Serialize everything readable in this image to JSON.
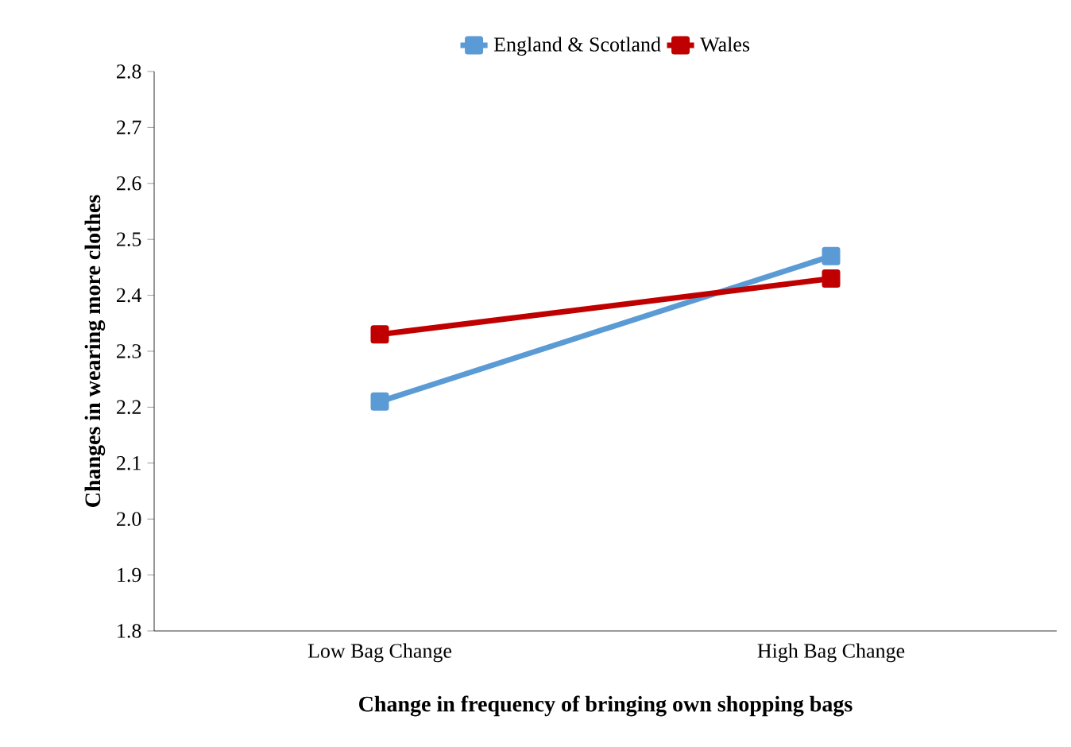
{
  "chart_data": {
    "type": "line",
    "xlabel": "Change in frequency of bringing own shopping bags",
    "ylabel": "Changes in wearing more clothes",
    "categories": [
      "Low Bag Change",
      "High Bag Change"
    ],
    "series": [
      {
        "name": "England & Scotland",
        "color": "#5b9bd5",
        "values": [
          2.21,
          2.47
        ]
      },
      {
        "name": "Wales",
        "color": "#c00000",
        "values": [
          2.33,
          2.43
        ]
      }
    ],
    "ylim": [
      1.8,
      2.8
    ],
    "yticks": [
      {
        "value": 1.8,
        "label": "1.8"
      },
      {
        "value": 1.9,
        "label": "1.9"
      },
      {
        "value": 2.0,
        "label": "2.0"
      },
      {
        "value": 2.1,
        "label": "2.1"
      },
      {
        "value": 2.2,
        "label": "2.2"
      },
      {
        "value": 2.3,
        "label": "2.3"
      },
      {
        "value": 2.4,
        "label": "2.4"
      },
      {
        "value": 2.5,
        "label": "2.5"
      },
      {
        "value": 2.6,
        "label": "2.6"
      },
      {
        "value": 2.7,
        "label": "2.7"
      },
      {
        "value": 2.8,
        "label": "2.8"
      }
    ],
    "legend": "top",
    "marker": "square",
    "grid": false
  }
}
